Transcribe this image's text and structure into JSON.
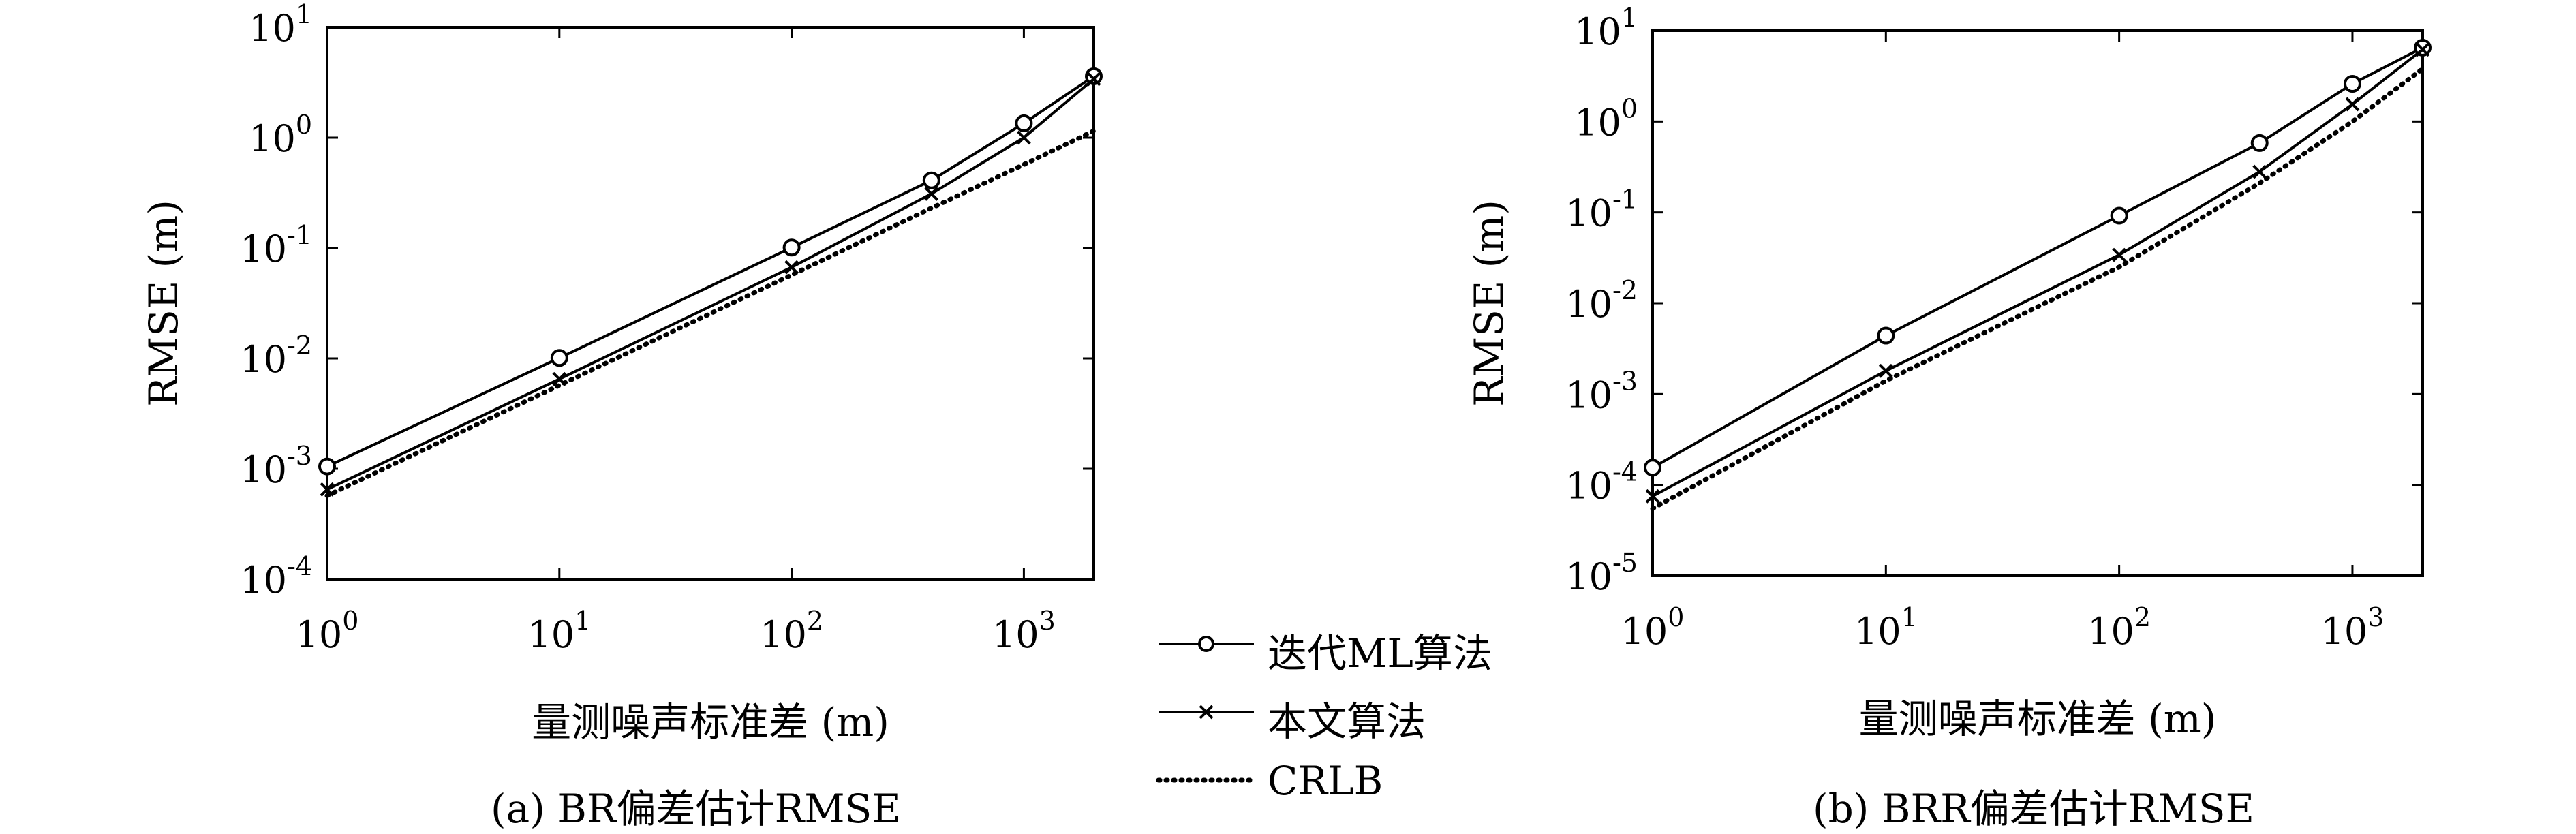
{
  "chart_data": [
    {
      "type": "line",
      "caption": "(a) BR偏差估计RMSE",
      "xlabel": "量测噪声标准差 (m)",
      "ylabel": "RMSE (m)",
      "xscale": "log",
      "yscale": "log",
      "xlim": [
        1,
        2000
      ],
      "ylim": [
        0.0001,
        10
      ],
      "x_ticks": [
        1,
        10,
        100,
        1000
      ],
      "x_tick_labels": [
        "10^0",
        "10^1",
        "10^2",
        "10^3"
      ],
      "y_ticks": [
        0.0001,
        0.001,
        0.01,
        0.1,
        1,
        10
      ],
      "y_tick_labels": [
        "10^-4",
        "10^-3",
        "10^-2",
        "10^-1",
        "10^0",
        "10^1"
      ],
      "grid": false,
      "series": [
        {
          "name": "迭代ML算法",
          "x": [
            1,
            10,
            100,
            400,
            1000,
            2000
          ],
          "y": [
            0.00105,
            0.0101,
            0.101,
            0.41,
            1.35,
            3.6
          ]
        },
        {
          "name": "本文算法",
          "x": [
            1,
            10,
            100,
            400,
            1000,
            2000
          ],
          "y": [
            0.00065,
            0.0065,
            0.067,
            0.31,
            1.0,
            3.4
          ]
        },
        {
          "name": "CRLB",
          "x": [
            1,
            10,
            100,
            400,
            1000,
            2000
          ],
          "y": [
            0.00057,
            0.0057,
            0.057,
            0.23,
            0.57,
            1.15
          ]
        }
      ]
    },
    {
      "type": "line",
      "caption": "(b) BRR偏差估计RMSE",
      "xlabel": "量测噪声标准差 (m)",
      "ylabel": "RMSE (m)",
      "xscale": "log",
      "yscale": "log",
      "xlim": [
        1,
        2000
      ],
      "ylim": [
        1e-05,
        10
      ],
      "x_ticks": [
        1,
        10,
        100,
        1000
      ],
      "x_tick_labels": [
        "10^0",
        "10^1",
        "10^2",
        "10^3"
      ],
      "y_ticks": [
        1e-05,
        0.0001,
        0.001,
        0.01,
        0.1,
        1,
        10
      ],
      "y_tick_labels": [
        "10^-5",
        "10^-4",
        "10^-3",
        "10^-2",
        "10^-1",
        "10^0",
        "10^1"
      ],
      "grid": false,
      "series": [
        {
          "name": "迭代ML算法",
          "x": [
            1,
            10,
            100,
            400,
            1000,
            2000
          ],
          "y": [
            0.000155,
            0.0044,
            0.092,
            0.58,
            2.6,
            6.5
          ]
        },
        {
          "name": "本文算法",
          "x": [
            1,
            10,
            100,
            400,
            1000,
            2000
          ],
          "y": [
            7.5e-05,
            0.0018,
            0.034,
            0.28,
            1.55,
            6.2
          ]
        },
        {
          "name": "CRLB",
          "x": [
            1,
            10,
            100,
            400,
            1000,
            2000
          ],
          "y": [
            5.5e-05,
            0.0014,
            0.025,
            0.21,
            1.0,
            3.8
          ]
        }
      ]
    }
  ],
  "legend": {
    "items": [
      {
        "label": "迭代ML算法",
        "marker": "circle",
        "style": "solid"
      },
      {
        "label": "本文算法",
        "marker": "x",
        "style": "solid"
      },
      {
        "label": "CRLB",
        "marker": "none",
        "style": "dotted"
      }
    ]
  },
  "captions": {
    "a": "(a) BR偏差估计RMSE",
    "b": "(b) BRR偏差估计RMSE"
  }
}
